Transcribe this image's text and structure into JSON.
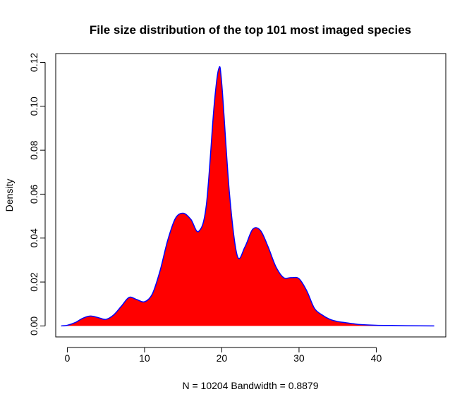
{
  "chart_data": {
    "type": "area",
    "title": "File size distribution of the top 101 most imaged species",
    "xlabel": "N = 10204   Bandwidth = 0.8879",
    "ylabel": "Density",
    "xlim": [
      -1.5,
      49
    ],
    "ylim": [
      -0.005,
      0.124
    ],
    "x_ticks": [
      0,
      10,
      20,
      30,
      40
    ],
    "x_tick_labels": [
      "0",
      "10",
      "20",
      "30",
      "40"
    ],
    "y_ticks": [
      0.0,
      0.02,
      0.04,
      0.06,
      0.08,
      0.1,
      0.12
    ],
    "y_tick_labels": [
      "0.00",
      "0.02",
      "0.04",
      "0.06",
      "0.08",
      "0.10",
      "0.12"
    ],
    "grid": false,
    "legend": "none",
    "fill_color": "#ff0000",
    "line_color": "#0000ff",
    "series": [
      {
        "x": [
          -0.8,
          0,
          1,
          2,
          3,
          4,
          5,
          6,
          7,
          8,
          9,
          10,
          11,
          12,
          13,
          14,
          15,
          16,
          17,
          18,
          19,
          19.6,
          20,
          21,
          22,
          23,
          24,
          25,
          26,
          27,
          28,
          29,
          30,
          31,
          32,
          33,
          34,
          35,
          36,
          37,
          38,
          40,
          42,
          44,
          47.5
        ],
        "y": [
          0.0,
          0.0003,
          0.0015,
          0.0035,
          0.0045,
          0.0038,
          0.003,
          0.005,
          0.009,
          0.013,
          0.012,
          0.011,
          0.0145,
          0.025,
          0.039,
          0.049,
          0.0513,
          0.0485,
          0.043,
          0.055,
          0.1,
          0.117,
          0.11,
          0.06,
          0.032,
          0.036,
          0.044,
          0.0435,
          0.036,
          0.027,
          0.022,
          0.022,
          0.0215,
          0.016,
          0.008,
          0.005,
          0.003,
          0.002,
          0.0015,
          0.001,
          0.0006,
          0.0003,
          0.0002,
          0.0001,
          0.0
        ]
      }
    ]
  }
}
